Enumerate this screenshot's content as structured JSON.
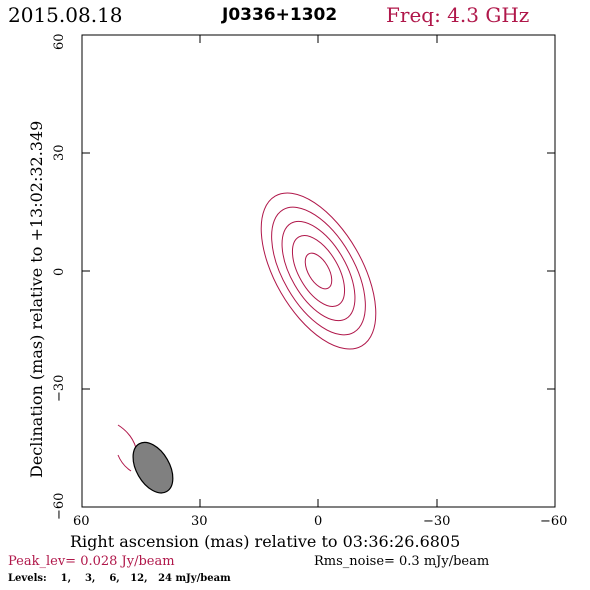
{
  "header": {
    "date": "2015.08.18",
    "source": "J0336+1302",
    "frequency": "Freq: 4.3 GHz"
  },
  "axes": {
    "xlabel": "Right ascension (mas) relative to 03:36:26.6805",
    "ylabel": "Declination (mas) relative to +13:02:32.349",
    "xticks": [
      "60",
      "30",
      "0",
      "−30",
      "−60"
    ],
    "yticks": [
      "60",
      "30",
      "0",
      "−30",
      "−60"
    ],
    "xlim": [
      60,
      -60
    ],
    "ylim": [
      -60,
      60
    ]
  },
  "footer": {
    "peak": "Peak_lev=  0.028 Jy/beam",
    "rms": "Rms_noise=   0.3 mJy/beam",
    "levels": "Levels:    1,    3,    6,   12,   24 mJy/beam"
  },
  "colors": {
    "contour": "#b0174a",
    "beam_fill": "#808080"
  },
  "image": {
    "contours": {
      "center_mas": [
        0,
        0
      ],
      "semi_axes_mas": [
        [
          11,
          22
        ],
        [
          9,
          18
        ],
        [
          7,
          14
        ],
        [
          5,
          10
        ],
        [
          2.6,
          5
        ]
      ],
      "pa_deg": 30
    },
    "beam": {
      "center_mas": [
        42,
        -50
      ],
      "semi_axes_mas": [
        4.2,
        7
      ],
      "pa_deg": 30
    }
  }
}
